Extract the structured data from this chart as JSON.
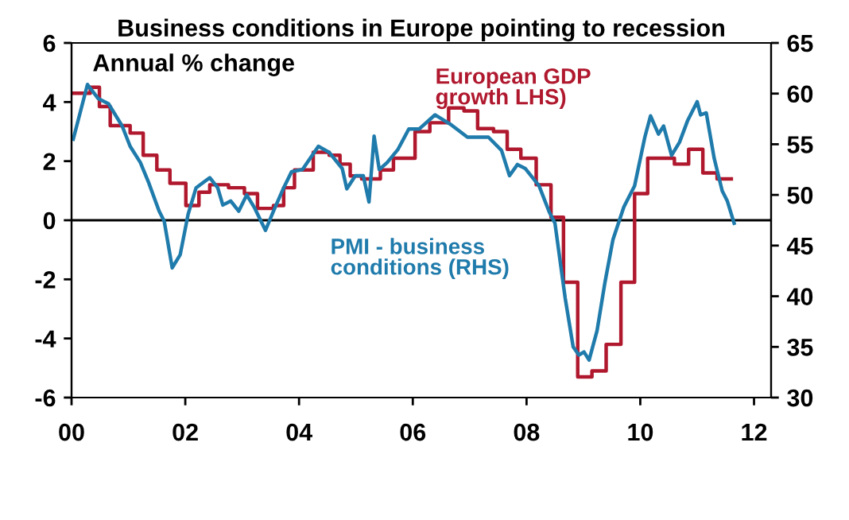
{
  "chart_data": {
    "type": "line",
    "title": "Business conditions in Europe pointing to recession",
    "annotations": [
      "Annual % change"
    ],
    "xlim": [
      2000,
      2012.3
    ],
    "xticks": [
      {
        "value": 2000,
        "label": "00"
      },
      {
        "value": 2002,
        "label": "02"
      },
      {
        "value": 2004,
        "label": "04"
      },
      {
        "value": 2006,
        "label": "06"
      },
      {
        "value": 2008,
        "label": "08"
      },
      {
        "value": 2010,
        "label": "10"
      },
      {
        "value": 2012,
        "label": "12"
      }
    ],
    "ylim": [
      -6,
      6
    ],
    "yticks": [
      -6,
      -4,
      -2,
      0,
      2,
      4,
      6
    ],
    "y2lim": [
      30,
      65
    ],
    "y2ticks": [
      30,
      35,
      40,
      45,
      50,
      55,
      60,
      65
    ],
    "ref_lines": [
      {
        "axis": "y",
        "value": 0,
        "color": "#000000"
      }
    ],
    "grid": false,
    "legend": false,
    "series": [
      {
        "name": "European GDP\ngrowth LHS)",
        "type": "step",
        "color": "#b0182e",
        "axis": "y",
        "x": [
          2000.03,
          2000.33,
          2000.49,
          2000.68,
          2001.03,
          2001.26,
          2001.5,
          2001.73,
          2002.01,
          2002.24,
          2002.43,
          2002.76,
          2003.04,
          2003.27,
          2003.55,
          2003.73,
          2003.92,
          2004.25,
          2004.53,
          2004.72,
          2004.9,
          2005.1,
          2005.43,
          2005.66,
          2006.04,
          2006.3,
          2006.63,
          2006.9,
          2007.14,
          2007.42,
          2007.66,
          2007.9,
          2008.17,
          2008.43,
          2008.65,
          2008.9,
          2009.15,
          2009.4,
          2009.66,
          2009.9,
          2010.13,
          2010.6,
          2010.85,
          2011.1,
          2011.35,
          2011.6
        ],
        "values": [
          4.3,
          4.5,
          3.85,
          3.2,
          2.95,
          2.2,
          1.7,
          1.25,
          0.5,
          0.95,
          1.2,
          1.1,
          0.9,
          0.4,
          0.5,
          1.1,
          1.7,
          2.3,
          2.2,
          1.9,
          1.5,
          1.4,
          1.7,
          2.1,
          3.0,
          3.3,
          3.8,
          3.7,
          3.1,
          3.0,
          2.4,
          2.1,
          1.2,
          0.1,
          -2.1,
          -5.3,
          -5.1,
          -4.2,
          -2.1,
          0.9,
          2.1,
          1.9,
          2.4,
          1.6,
          1.4,
          1.4
        ]
      },
      {
        "name": "PMI - business\nconditions (RHS)",
        "color": "#1f7bab",
        "axis": "y2",
        "x": [
          2000.03,
          2000.28,
          2000.47,
          2000.65,
          2000.89,
          2001.03,
          2001.21,
          2001.35,
          2001.54,
          2001.63,
          2001.77,
          2001.91,
          2002.05,
          2002.19,
          2002.43,
          2002.57,
          2002.66,
          2002.8,
          2002.94,
          2003.08,
          2003.22,
          2003.41,
          2003.55,
          2003.73,
          2003.87,
          2004.06,
          2004.34,
          2004.53,
          2004.76,
          2004.84,
          2004.99,
          2005.13,
          2005.23,
          2005.32,
          2005.41,
          2005.55,
          2005.74,
          2005.93,
          2006.11,
          2006.39,
          2006.68,
          2006.96,
          2007.33,
          2007.56,
          2007.7,
          2007.84,
          2007.98,
          2008.22,
          2008.4,
          2008.5,
          2008.68,
          2008.82,
          2008.92,
          2009.01,
          2009.1,
          2009.24,
          2009.38,
          2009.52,
          2009.71,
          2009.9,
          2010.08,
          2010.18,
          2010.32,
          2010.41,
          2010.55,
          2010.69,
          2010.83,
          2011.0,
          2011.06,
          2011.16,
          2011.3,
          2011.44,
          2011.53,
          2011.65
        ],
        "values": [
          55.5,
          60.9,
          59.5,
          59.0,
          56.8,
          54.8,
          53.2,
          51.3,
          48.4,
          47.4,
          42.8,
          44.1,
          48.1,
          50.7,
          51.7,
          50.7,
          49.0,
          49.4,
          48.4,
          50.0,
          48.7,
          46.5,
          48.4,
          50.7,
          52.3,
          52.5,
          54.8,
          54.2,
          52.6,
          50.6,
          51.9,
          51.9,
          49.3,
          55.8,
          52.5,
          53.2,
          54.5,
          56.5,
          56.5,
          57.9,
          56.9,
          55.7,
          55.7,
          54.4,
          51.9,
          53.0,
          52.6,
          50.9,
          48.3,
          47.2,
          39.8,
          35.0,
          34.2,
          34.5,
          33.7,
          36.6,
          41.4,
          45.6,
          48.8,
          50.9,
          55.7,
          57.8,
          56.0,
          56.8,
          53.9,
          55.2,
          57.3,
          59.2,
          57.9,
          58.1,
          53.6,
          50.4,
          49.4,
          47.2
        ]
      }
    ]
  }
}
